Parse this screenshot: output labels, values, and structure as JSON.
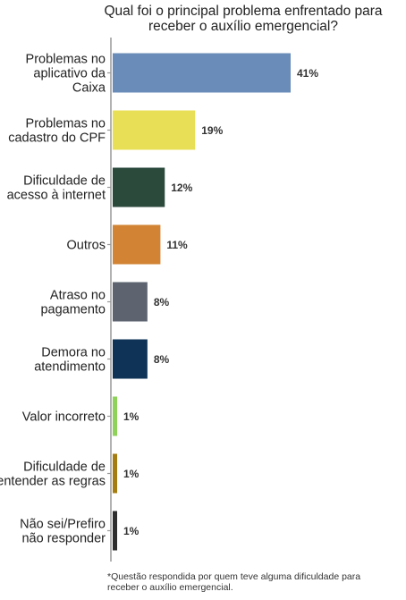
{
  "chart_data": {
    "type": "bar",
    "orientation": "horizontal",
    "title_lines": [
      "Qual foi o principal problema enfrentado para",
      "receber o auxílio emergencial?"
    ],
    "categories": [
      [
        "Problemas no",
        "aplicativo da",
        "Caixa"
      ],
      [
        "Problemas no",
        "cadastro do CPF"
      ],
      [
        "Dificuldade de",
        "acesso à internet"
      ],
      [
        "Outros"
      ],
      [
        "Atraso no",
        "pagamento"
      ],
      [
        "Demora no",
        "atendimento"
      ],
      [
        "Valor incorreto"
      ],
      [
        "Dificuldade de",
        "entender as regras"
      ],
      [
        "Não sei/Prefiro",
        "não responder"
      ]
    ],
    "values": [
      41,
      19,
      12,
      11,
      8,
      8,
      1,
      1,
      1
    ],
    "value_labels": [
      "41%",
      "19%",
      "12%",
      "11%",
      "8%",
      "8%",
      "1%",
      "1%",
      "1%"
    ],
    "colors": [
      "#6a8cb8",
      "#e8df56",
      "#2b4a3c",
      "#d28434",
      "#5d6470",
      "#0e3356",
      "#8fd25a",
      "#a57c10",
      "#2e2e2e"
    ],
    "xlim": [
      0,
      41
    ],
    "grid": false,
    "legend": "none"
  },
  "footnote": {
    "line1": "*Questão respondida por quem teve alguma dificuldade para",
    "line2": "receber o auxílio emergencial."
  }
}
